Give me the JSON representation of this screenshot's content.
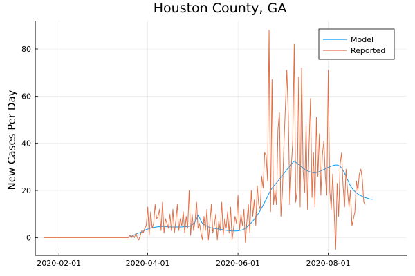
{
  "chart_data": {
    "type": "line",
    "title": "Houston County, GA",
    "xlabel": "",
    "ylabel": "New Cases Per Day",
    "x_start": "2020-01-22",
    "x_ticks": [
      "2020-02-01",
      "2020-04-01",
      "2020-06-01",
      "2020-08-01"
    ],
    "y_ticks": [
      0,
      20,
      40,
      60,
      80
    ],
    "ylim": [
      -7.5,
      92
    ],
    "xlim": [
      "2020-01-16",
      "2020-09-23"
    ],
    "grid": true,
    "legend_position": "top-right",
    "series": [
      {
        "name": "Model",
        "color": "#009af9",
        "start_day": 58,
        "values": [
          0.3,
          0.6,
          0.9,
          1.2,
          1.5,
          1.8,
          2.0,
          2.2,
          2.5,
          2.8,
          3.1,
          3.4,
          3.6,
          3.8,
          4.0,
          4.2,
          4.3,
          4.4,
          4.5,
          4.6,
          4.6,
          4.7,
          4.7,
          4.7,
          4.6,
          4.6,
          4.6,
          4.5,
          4.5,
          4.5,
          4.5,
          4.5,
          4.5,
          4.5,
          4.5,
          4.5,
          4.6,
          4.6,
          4.6,
          4.7,
          4.8,
          5.0,
          5.5,
          6.0,
          6.8,
          7.8,
          9.5,
          8.5,
          7.0,
          6.0,
          5.5,
          5.2,
          4.8,
          4.5,
          4.3,
          4.1,
          4.0,
          3.9,
          3.8,
          3.7,
          3.6,
          3.5,
          3.4,
          3.3,
          3.2,
          3.1,
          3.0,
          2.9,
          2.9,
          2.8,
          2.8,
          2.8,
          2.8,
          2.9,
          3.0,
          3.1,
          3.3,
          3.6,
          4.0,
          4.5,
          5.0,
          5.6,
          6.3,
          7.0,
          7.8,
          8.6,
          9.5,
          10.5,
          11.5,
          12.6,
          13.8,
          15.0,
          16.2,
          17.5,
          18.8,
          20.0,
          21.0,
          21.8,
          22.5,
          23.2,
          24.0,
          24.8,
          25.6,
          26.4,
          27.2,
          28.0,
          28.8,
          29.5,
          30.2,
          31.0,
          31.8,
          32.5,
          32.0,
          31.5,
          31.0,
          30.5,
          30.0,
          29.5,
          29.0,
          28.6,
          28.3,
          28.0,
          27.8,
          27.6,
          27.5,
          27.5,
          27.6,
          27.8,
          28.0,
          28.3,
          28.6,
          28.9,
          29.2,
          29.5,
          29.8,
          30.0,
          30.3,
          30.5,
          30.7,
          30.8,
          30.8,
          30.6,
          30.2,
          29.5,
          28.5,
          27.3,
          26.0,
          24.6,
          23.2,
          22.0,
          21.0,
          20.2,
          19.6,
          19.0,
          18.5,
          18.1,
          17.8,
          17.5,
          17.2,
          17.0,
          16.8,
          16.6,
          16.4,
          16.3,
          16.2
        ]
      },
      {
        "name": "Reported",
        "color": "#e26f46",
        "start_day": 0,
        "values": [
          0,
          0,
          0,
          0,
          0,
          0,
          0,
          0,
          0,
          0,
          0,
          0,
          0,
          0,
          0,
          0,
          0,
          0,
          0,
          0,
          0,
          0,
          0,
          0,
          0,
          0,
          0,
          0,
          0,
          0,
          0,
          0,
          0,
          0,
          0,
          0,
          0,
          0,
          0,
          0,
          0,
          0,
          0,
          0,
          0,
          0,
          0,
          0,
          0,
          0,
          0,
          0,
          0,
          0,
          0,
          0,
          0,
          0,
          1,
          0,
          1,
          0,
          2,
          0,
          -1,
          1,
          3,
          2,
          4,
          5,
          13,
          1,
          11,
          4,
          6,
          14,
          8,
          9,
          12,
          3,
          15,
          2,
          8,
          6,
          4,
          10,
          3,
          12,
          2,
          7,
          14,
          3,
          8,
          5,
          11,
          2,
          9,
          4,
          20,
          1,
          10,
          3,
          7,
          15,
          4,
          6,
          2,
          -1,
          9,
          3,
          12,
          -1,
          6,
          14,
          2,
          5,
          10,
          -1,
          7,
          3,
          15,
          1,
          8,
          4,
          11,
          2,
          13,
          -1,
          4,
          9,
          6,
          18,
          3,
          10,
          5,
          12,
          -2,
          7,
          14,
          2,
          20,
          9,
          16,
          5,
          22,
          14,
          12,
          26,
          21,
          36,
          35,
          24,
          88,
          11,
          67,
          14,
          20,
          14,
          46,
          53,
          9,
          19,
          39,
          55,
          71,
          52,
          14,
          30,
          41,
          82,
          15,
          20,
          68,
          13,
          72,
          28,
          19,
          48,
          12,
          39,
          59,
          17,
          36,
          13,
          51,
          26,
          44,
          18,
          35,
          41,
          26,
          18,
          71,
          20,
          12,
          27,
          11,
          -5,
          23,
          9,
          31,
          36,
          22,
          13,
          29,
          20,
          13,
          20,
          5,
          8,
          11,
          24,
          20,
          27,
          29,
          25,
          15,
          14
        ]
      }
    ]
  }
}
